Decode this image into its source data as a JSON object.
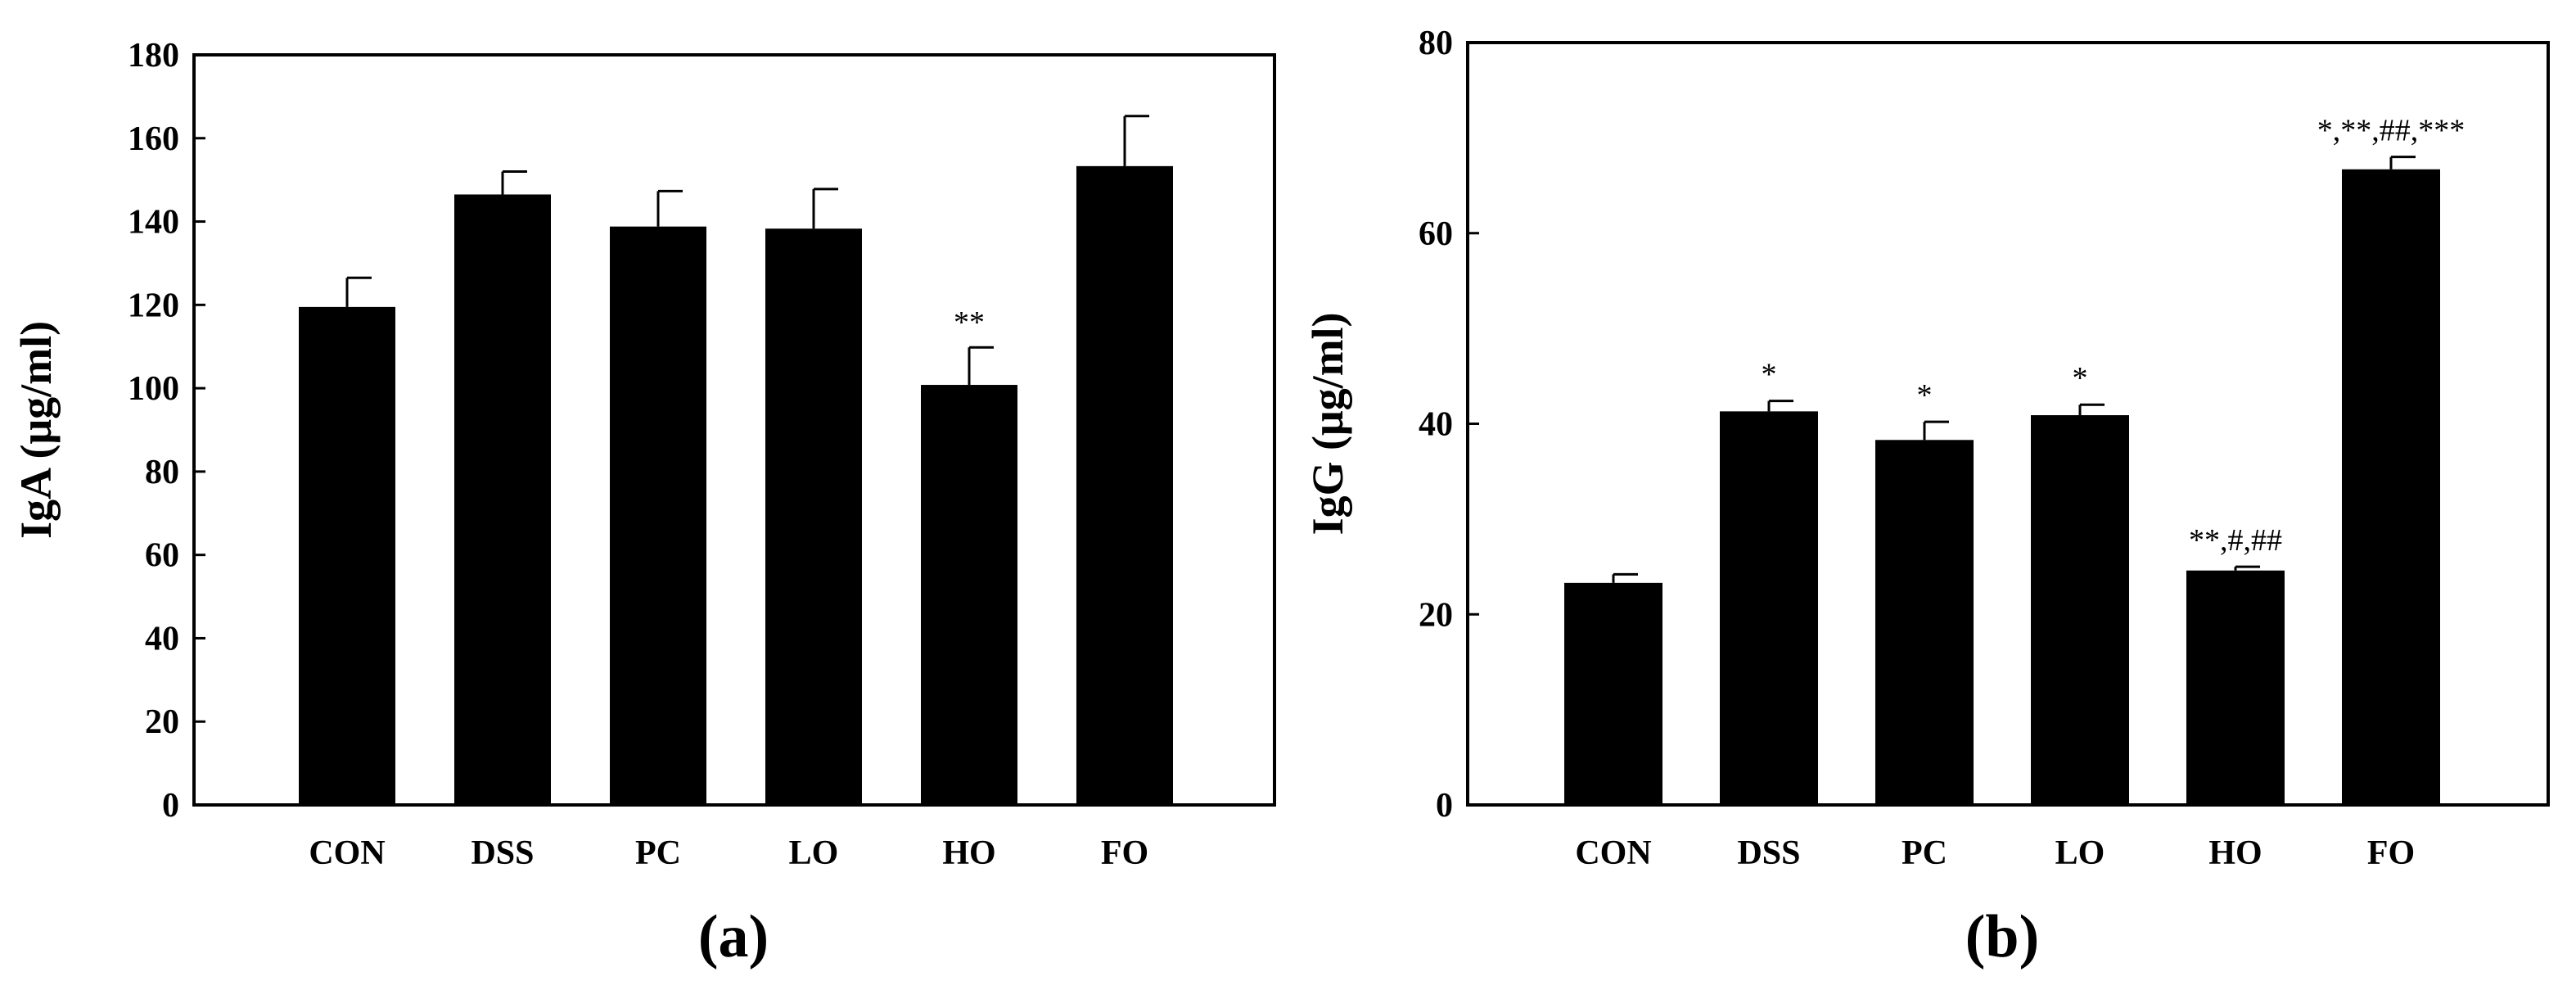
{
  "colors": {
    "bar": "#000000",
    "axis": "#000000",
    "background": "#ffffff"
  },
  "chart_data": [
    {
      "type": "bar",
      "panel_label": "(a)",
      "ylabel": "IgA (μg/ml)",
      "xlabel": "",
      "ylim": [
        0,
        180
      ],
      "yticks": [
        0,
        20,
        40,
        60,
        80,
        100,
        120,
        140,
        160,
        180
      ],
      "categories": [
        "CON",
        "DSS",
        "PC",
        "LO",
        "HO",
        "FO"
      ],
      "values": [
        119.5,
        146.5,
        138.8,
        138.3,
        100.8,
        153.3
      ],
      "errors": [
        7,
        5.5,
        8.5,
        9.5,
        9,
        12
      ],
      "annotations": [
        "",
        "",
        "",
        "",
        "**",
        ""
      ],
      "grid": false
    },
    {
      "type": "bar",
      "panel_label": "(b)",
      "ylabel": "IgG (μg/ml)",
      "xlabel": "",
      "ylim": [
        0,
        80
      ],
      "yticks": [
        0,
        20,
        40,
        60,
        80
      ],
      "categories": [
        "CON",
        "DSS",
        "PC",
        "LO",
        "HO",
        "FO"
      ],
      "values": [
        23.3,
        41.3,
        38.3,
        40.9,
        24.6,
        66.7
      ],
      "errors": [
        0.9,
        1.1,
        1.9,
        1.1,
        0.4,
        1.3
      ],
      "annotations": [
        "",
        "*",
        "*",
        "*",
        "**,#,##",
        "*,**,##,***"
      ],
      "grid": false
    }
  ]
}
